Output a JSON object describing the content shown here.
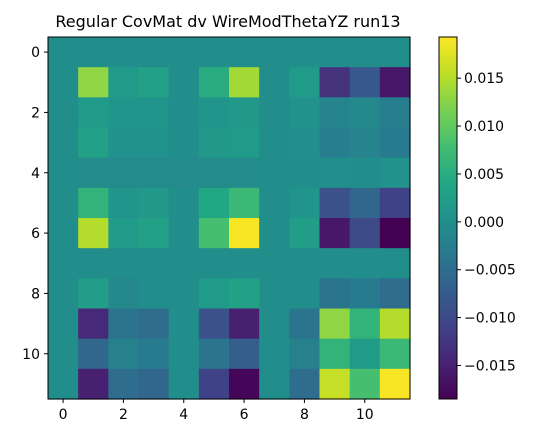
{
  "chart_data": {
    "type": "heatmap",
    "title": "Regular CovMat dv WireModThetaYZ run13",
    "xlabel": "",
    "ylabel": "",
    "x_range": [
      -0.5,
      11.5
    ],
    "y_range": [
      -0.5,
      11.5
    ],
    "y_inverted": true,
    "x_ticks": [
      0,
      2,
      4,
      6,
      8,
      10
    ],
    "y_ticks": [
      0,
      2,
      4,
      6,
      8,
      10
    ],
    "colormap": "viridis",
    "clim": [
      -0.0185,
      0.0193
    ],
    "colorbar_ticks": [
      -0.015,
      -0.01,
      -0.005,
      0.0,
      0.005,
      0.01,
      0.015
    ],
    "colorbar_tick_labels": [
      "−0.015",
      "−0.010",
      "−0.005",
      "0.000",
      "0.005",
      "0.010",
      "0.015"
    ],
    "grid": false,
    "values": [
      [
        0.0,
        0.0,
        0.0,
        0.0,
        0.0,
        0.0,
        0.0,
        0.0,
        0.0,
        0.0,
        0.0,
        0.0
      ],
      [
        0.0,
        0.013,
        0.002,
        0.003,
        0.0,
        0.005,
        0.014,
        0.0,
        0.002,
        -0.013,
        -0.008,
        -0.016
      ],
      [
        0.0,
        0.002,
        0.001,
        0.001,
        0.0,
        0.001,
        0.0015,
        0.0,
        0.0005,
        -0.0015,
        -0.001,
        -0.0025
      ],
      [
        0.0,
        0.003,
        0.0005,
        0.0005,
        0.0,
        0.0015,
        0.002,
        0.0,
        0.0003,
        -0.0025,
        -0.0015,
        -0.003
      ],
      [
        0.0,
        -0.0005,
        -0.0005,
        -0.0005,
        -0.0005,
        -0.0005,
        -0.0005,
        0.0,
        0.0,
        0.0003,
        0.0,
        0.0005
      ],
      [
        0.0,
        0.006,
        0.001,
        0.0015,
        0.0,
        0.004,
        0.007,
        0.0,
        0.001,
        -0.009,
        -0.006,
        -0.011
      ],
      [
        0.0,
        0.015,
        0.002,
        0.003,
        0.0,
        0.008,
        0.019,
        0.0,
        0.0025,
        -0.016,
        -0.01,
        -0.0185
      ],
      [
        0.0,
        0.0,
        0.0,
        0.0,
        0.0,
        0.0,
        0.0,
        0.0,
        0.0,
        0.0,
        0.0,
        0.0
      ],
      [
        0.0,
        0.0025,
        -0.001,
        0.0,
        0.0,
        0.002,
        0.003,
        0.0,
        0.0,
        -0.004,
        -0.003,
        -0.005
      ],
      [
        0.0,
        -0.014,
        -0.004,
        -0.005,
        0.0,
        -0.009,
        -0.015,
        0.0,
        -0.004,
        0.013,
        0.006,
        0.015
      ],
      [
        0.0,
        -0.006,
        -0.002,
        -0.003,
        0.0,
        -0.004,
        -0.007,
        0.0,
        -0.002,
        0.006,
        0.002,
        0.007
      ],
      [
        0.0,
        -0.015,
        -0.005,
        -0.006,
        0.0,
        -0.011,
        -0.018,
        0.0,
        -0.005,
        0.016,
        0.008,
        0.019
      ]
    ]
  }
}
